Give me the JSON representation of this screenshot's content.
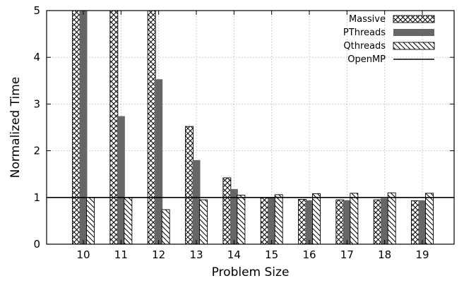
{
  "chart_data": {
    "type": "bar",
    "xlabel": "Problem Size",
    "ylabel": "Normalized Time",
    "categories": [
      "10",
      "11",
      "12",
      "13",
      "14",
      "15",
      "16",
      "17",
      "18",
      "19"
    ],
    "ylim": [
      0,
      5
    ],
    "yticks": [
      0,
      1,
      2,
      3,
      4,
      5
    ],
    "grid": true,
    "legend_position": "top-right",
    "series": [
      {
        "name": "Massive",
        "pattern": "crosshatch",
        "values": [
          5,
          5,
          5,
          2.52,
          1.42,
          1.0,
          0.96,
          0.95,
          0.95,
          0.93
        ]
      },
      {
        "name": "PThreads",
        "pattern": "solid",
        "color": "#666666",
        "values": [
          5,
          2.74,
          3.53,
          1.8,
          1.18,
          0.99,
          0.94,
          0.94,
          0.98,
          0.94
        ]
      },
      {
        "name": "Qthreads",
        "pattern": "diagonal",
        "values": [
          1.0,
          1.0,
          0.74,
          0.95,
          1.05,
          1.06,
          1.08,
          1.09,
          1.1,
          1.09
        ]
      }
    ],
    "reference_lines": [
      {
        "name": "OpenMP",
        "y": 1
      }
    ]
  }
}
